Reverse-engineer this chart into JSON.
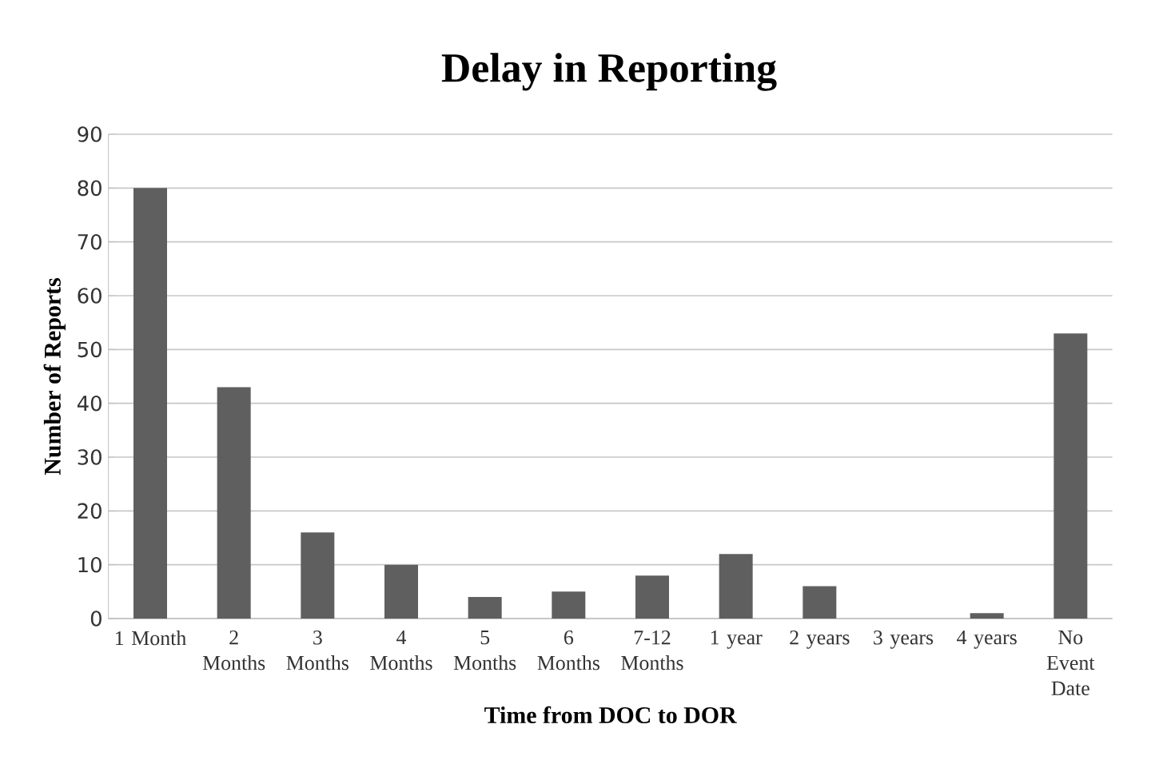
{
  "chart_data": {
    "type": "bar",
    "title": "Delay in Reporting",
    "xlabel": "Time from DOC to DOR",
    "ylabel": "Number of Reports",
    "categories": [
      "1 Month",
      "2 Months",
      "3 Months",
      "4 Months",
      "5 Months",
      "6 Months",
      "7-12 Months",
      "1 year",
      "2 years",
      "3 years",
      "4 years",
      "No Event Date"
    ],
    "values": [
      80,
      43,
      16,
      10,
      4,
      5,
      8,
      12,
      6,
      0,
      1,
      53
    ],
    "color": "#5f5f5f",
    "ylim": [
      0,
      90
    ],
    "yticks": [
      0,
      10,
      20,
      30,
      40,
      50,
      60,
      70,
      80,
      90
    ],
    "grid": "y"
  }
}
